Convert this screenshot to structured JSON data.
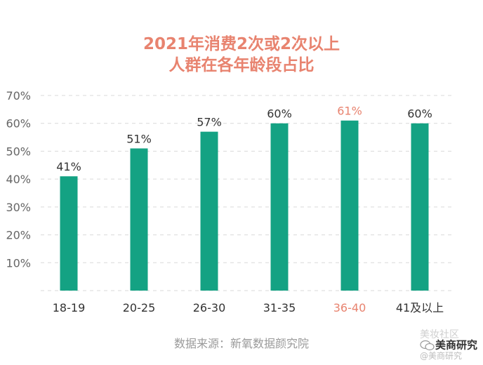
{
  "chart_data": {
    "type": "bar",
    "title_lines": [
      "2021年消费2次或2次以上",
      "人群在各年龄段占比"
    ],
    "categories": [
      "18-19",
      "20-25",
      "26-30",
      "31-35",
      "36-40",
      "41及以上"
    ],
    "values": [
      41,
      51,
      57,
      60,
      61,
      60
    ],
    "value_labels": [
      "41%",
      "51%",
      "57%",
      "60%",
      "61%",
      "60%"
    ],
    "highlight_index": 4,
    "ylim": [
      0,
      70
    ],
    "y_ticks": [
      10,
      20,
      30,
      40,
      50,
      60,
      70
    ],
    "y_tick_labels": [
      "10%",
      "20%",
      "30%",
      "40%",
      "50%",
      "60%",
      "70%"
    ],
    "grid": "dashed horizontal",
    "colors": {
      "bar": "#14a283",
      "title": "#e8836f",
      "highlight_label": "#e8836f",
      "text": "#333333",
      "axis_text": "#666666",
      "grid": "#d9d9d9"
    }
  },
  "source": "数据来源：新氧数据颜究院",
  "watermark": {
    "line1": "美妆社区",
    "line2": "美商研究",
    "line3": "@美商研究",
    "icon": "wechat-icon"
  }
}
